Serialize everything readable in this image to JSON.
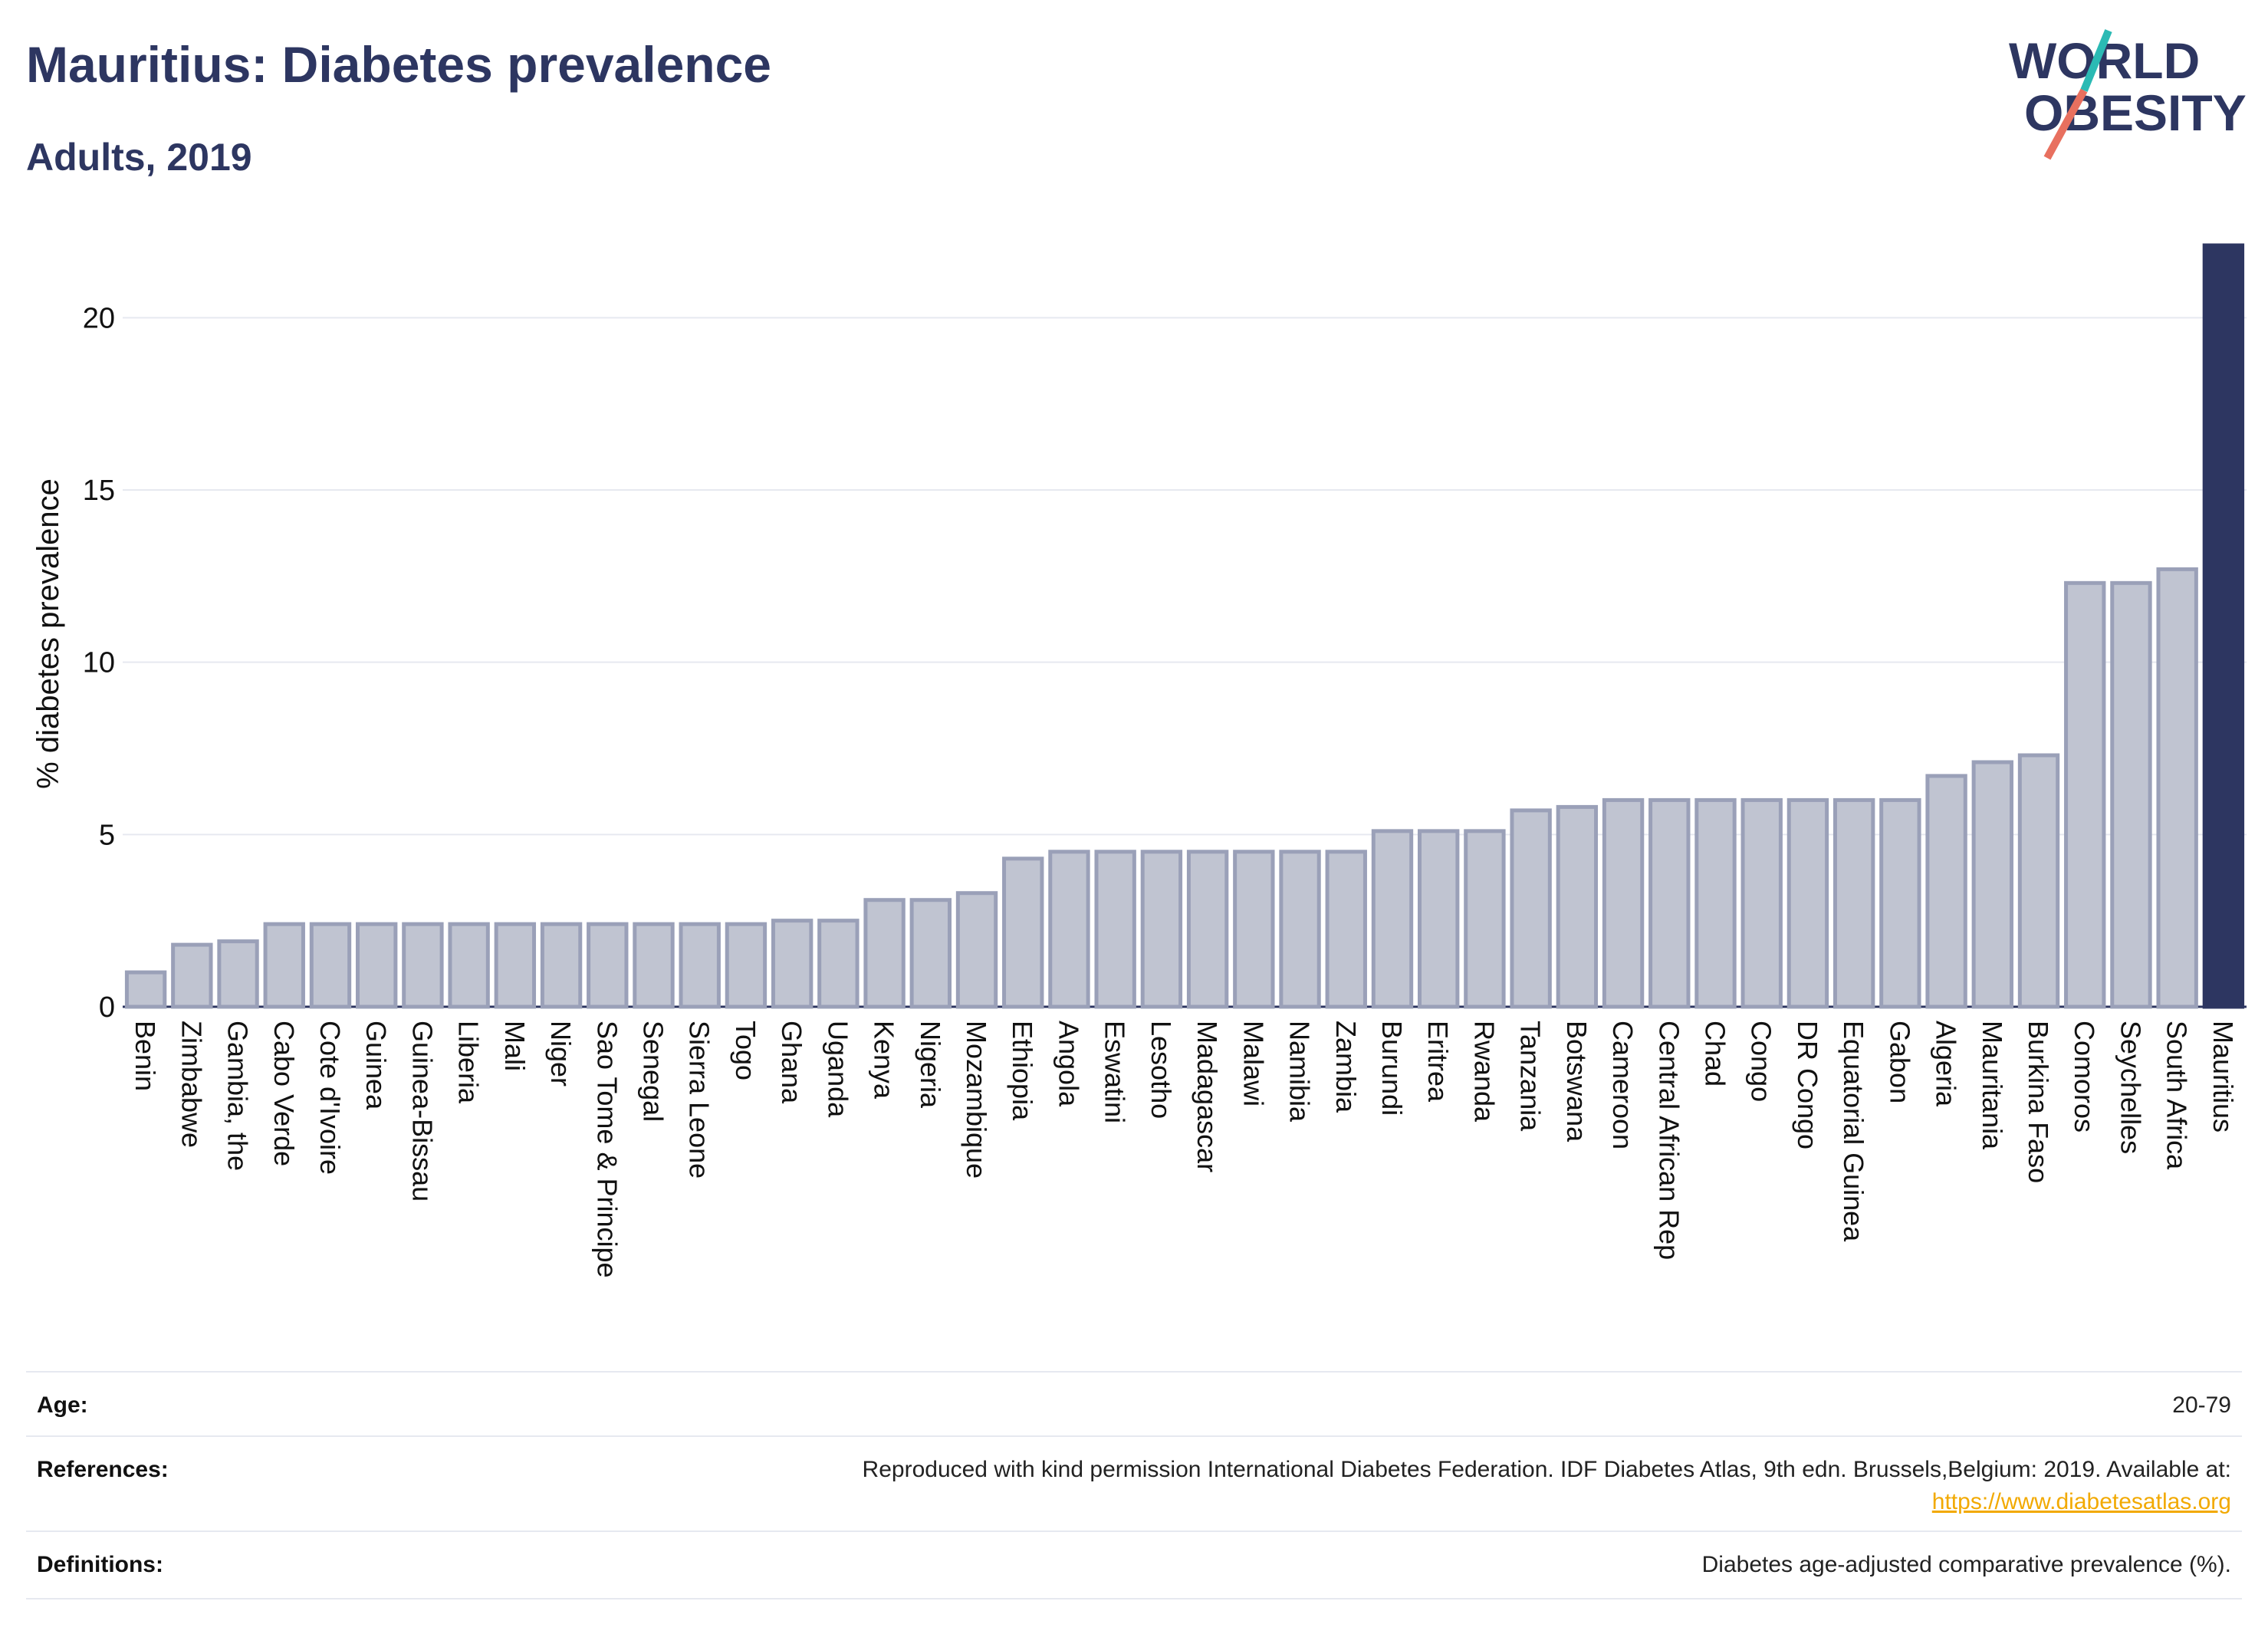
{
  "header": {
    "title": "Mauritius: Diabetes prevalence",
    "subtitle": "Adults, 2019"
  },
  "logo": {
    "line1": "WORLD",
    "line2": "OBESITY"
  },
  "colors": {
    "bar": "#c0c4d1",
    "bar_stroke": "#9aa0b8",
    "highlight": "#2d3661",
    "grid": "#e6e9f0",
    "logo_teal": "#2bbab4",
    "logo_coral": "#e8705f"
  },
  "chart_data": {
    "type": "bar",
    "ylabel": "% diabetes prevalence",
    "ylim": [
      0,
      22.1
    ],
    "yticks": [
      0,
      5,
      10,
      15,
      20
    ],
    "grid": true,
    "highlight": "Mauritius",
    "categories": [
      "Benin",
      "Zimbabwe",
      "Gambia, the",
      "Cabo Verde",
      "Cote d'Ivoire",
      "Guinea",
      "Guinea-Bissau",
      "Liberia",
      "Mali",
      "Niger",
      "Sao Tome & Principe",
      "Senegal",
      "Sierra Leone",
      "Togo",
      "Ghana",
      "Uganda",
      "Kenya",
      "Nigeria",
      "Mozambique",
      "Ethiopia",
      "Angola",
      "Eswatini",
      "Lesotho",
      "Madagascar",
      "Malawi",
      "Namibia",
      "Zambia",
      "Burundi",
      "Eritrea",
      "Rwanda",
      "Tanzania",
      "Botswana",
      "Cameroon",
      "Central African Rep",
      "Chad",
      "Congo",
      "DR Congo",
      "Equatorial Guinea",
      "Gabon",
      "Algeria",
      "Mauritania",
      "Burkina Faso",
      "Comoros",
      "Seychelles",
      "South Africa",
      "Mauritius"
    ],
    "values": [
      1.0,
      1.8,
      1.9,
      2.4,
      2.4,
      2.4,
      2.4,
      2.4,
      2.4,
      2.4,
      2.4,
      2.4,
      2.4,
      2.4,
      2.5,
      2.5,
      3.1,
      3.1,
      3.3,
      4.3,
      4.5,
      4.5,
      4.5,
      4.5,
      4.5,
      4.5,
      4.5,
      5.1,
      5.1,
      5.1,
      5.7,
      5.8,
      6.0,
      6.0,
      6.0,
      6.0,
      6.0,
      6.0,
      6.0,
      6.7,
      7.1,
      7.3,
      12.3,
      12.3,
      12.7,
      22.1
    ]
  },
  "info": {
    "age_label": "Age:",
    "age_value": "20-79",
    "references_label": "References:",
    "references_text": "Reproduced with kind permission International Diabetes Federation. IDF Diabetes Atlas, 9th edn. Brussels,Belgium: 2019. Available at:",
    "references_link": "https://www.diabetesatlas.org",
    "definitions_label": "Definitions:",
    "definitions_value": "Diabetes age-adjusted comparative prevalence (%)."
  }
}
